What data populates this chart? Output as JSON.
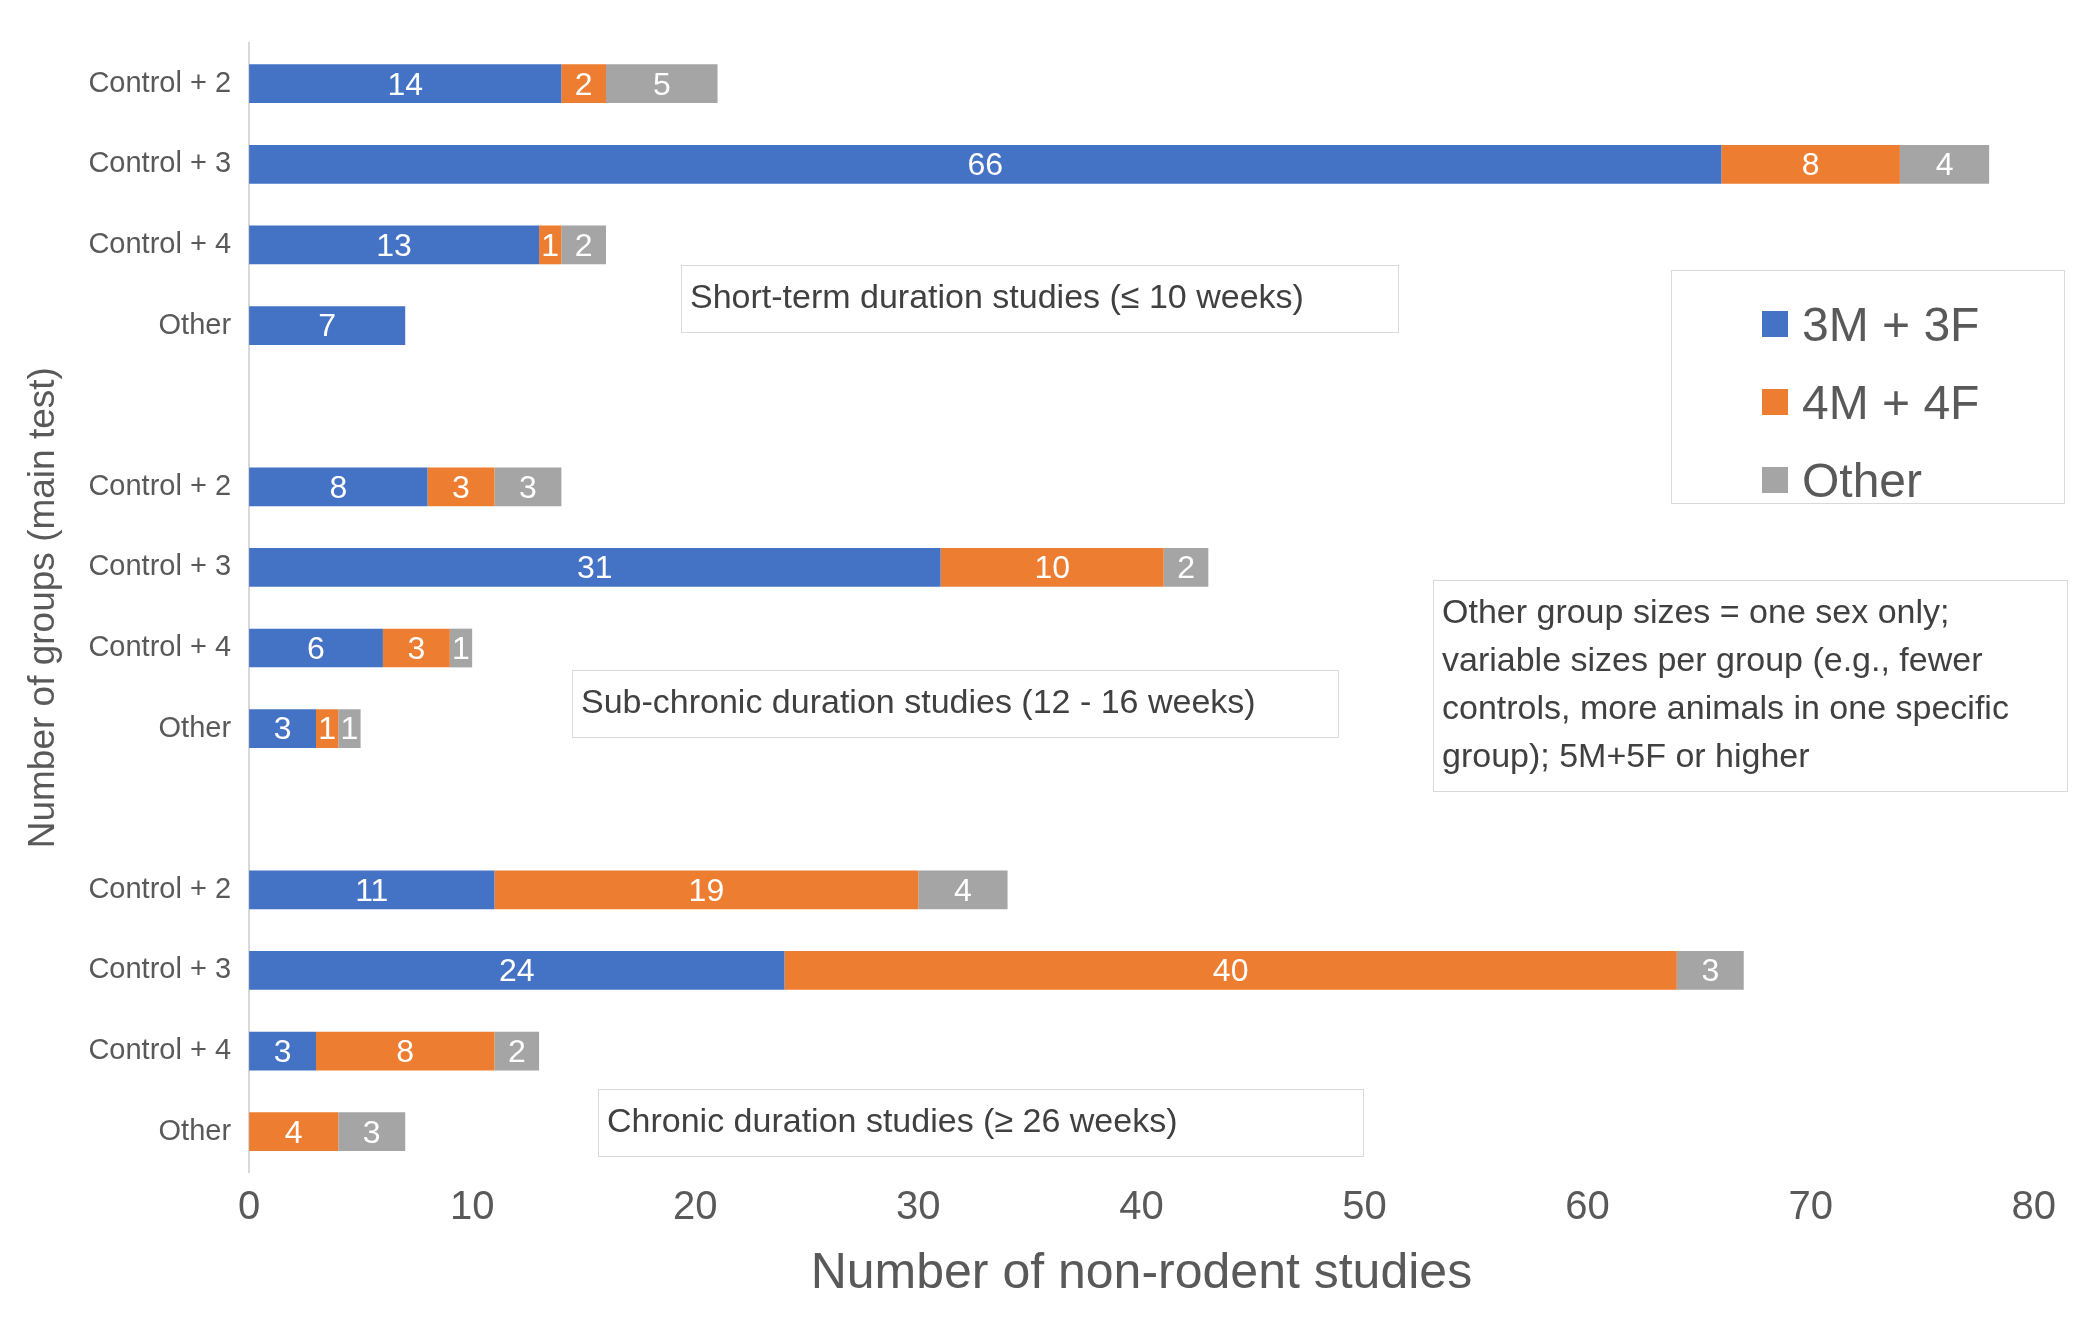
{
  "chart_data": {
    "type": "bar",
    "orientation": "horizontal",
    "stacked": true,
    "xlabel": "Number of non-rodent studies",
    "ylabel": "Number of groups (main test)",
    "categories": [
      "Control + 2",
      "Control + 3",
      "Control + 4",
      "Other",
      null,
      "Control + 2",
      "Control + 3",
      "Control + 4",
      "Other",
      null,
      "Control + 2",
      "Control + 3",
      "Control + 4",
      "Other"
    ],
    "series": [
      {
        "name": "3M + 3F",
        "color": "#4472c4",
        "values": [
          14,
          66,
          13,
          7,
          null,
          8,
          31,
          6,
          3,
          null,
          11,
          24,
          3,
          null
        ]
      },
      {
        "name": "4M + 4F",
        "color": "#ed7d31",
        "values": [
          2,
          8,
          1,
          null,
          null,
          3,
          10,
          3,
          1,
          null,
          19,
          40,
          8,
          4
        ]
      },
      {
        "name": "Other",
        "color": "#a5a5a5",
        "values": [
          5,
          4,
          2,
          null,
          null,
          3,
          2,
          1,
          1,
          null,
          4,
          3,
          2,
          3
        ]
      }
    ],
    "xlim": [
      0,
      80
    ],
    "xticks": [
      0,
      10,
      20,
      30,
      40,
      50,
      60,
      70,
      80
    ],
    "grid": false,
    "legend": "top right",
    "data_labels": true,
    "annotations": [
      "Short-term duration studies (≤ 10 weeks)",
      "Sub-chronic duration studies (12 - 16 weeks)",
      "Chronic duration studies (≥ 26 weeks)",
      "Other group sizes = one sex only; variable sizes per group (e.g., fewer controls, more animals in one specific group); 5M+5F or higher"
    ]
  }
}
